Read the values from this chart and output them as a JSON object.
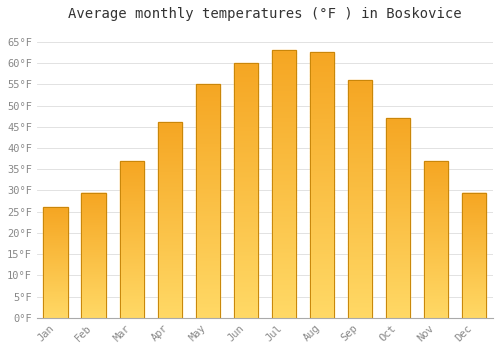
{
  "title": "Average monthly temperatures (°F ) in Boskovice",
  "months": [
    "Jan",
    "Feb",
    "Mar",
    "Apr",
    "May",
    "Jun",
    "Jul",
    "Aug",
    "Sep",
    "Oct",
    "Nov",
    "Dec"
  ],
  "values": [
    26,
    29.5,
    37,
    46,
    55,
    60,
    63,
    62.5,
    56,
    47,
    37,
    29.5
  ],
  "bar_color_top": "#F5A623",
  "bar_color_bottom": "#FFD966",
  "bar_edge_color": "#C8860A",
  "background_color": "#FFFFFF",
  "grid_color": "#DDDDDD",
  "title_fontsize": 10,
  "tick_label_color": "#888888",
  "title_color": "#333333",
  "ylim": [
    0,
    68
  ],
  "yticks": [
    0,
    5,
    10,
    15,
    20,
    25,
    30,
    35,
    40,
    45,
    50,
    55,
    60,
    65
  ],
  "bar_width": 0.65
}
